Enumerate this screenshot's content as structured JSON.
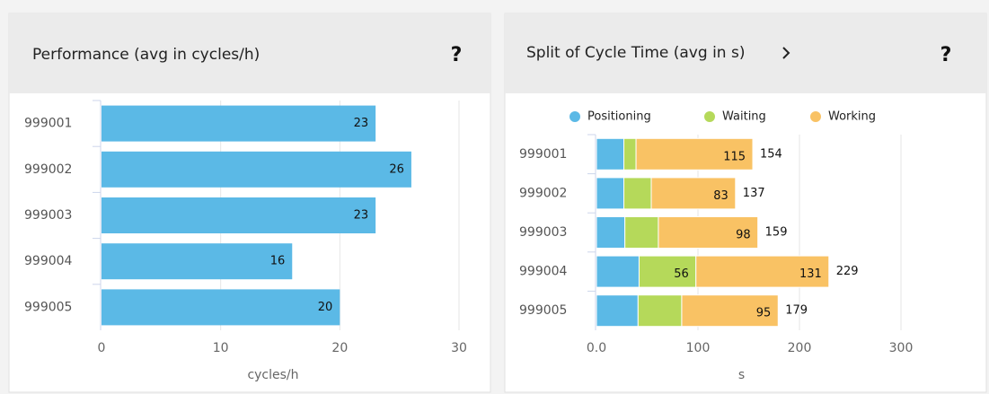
{
  "chart_data": [
    {
      "type": "bar",
      "title": "Performance (avg in cycles/h)",
      "help": "?",
      "categories": [
        "999001",
        "999002",
        "999003",
        "999004",
        "999005"
      ],
      "values": [
        23,
        26,
        23,
        16,
        20
      ],
      "color": "#5bb9e6",
      "xlim": [
        0,
        30
      ],
      "xticks": [
        0,
        10,
        20,
        30
      ],
      "xlabel": "cycles/h",
      "grid": true
    },
    {
      "type": "stacked_bar",
      "title": "Split of Cycle Time (avg in s)",
      "help": "?",
      "categories": [
        "999001",
        "999002",
        "999003",
        "999004",
        "999005"
      ],
      "series": [
        {
          "name": "Positioning",
          "color": "#5bb9e6",
          "values": [
            27,
            27,
            28,
            42,
            41
          ],
          "show_labels": false
        },
        {
          "name": "Waiting",
          "color": "#b5d95a",
          "values": [
            12,
            27,
            33,
            56,
            43
          ],
          "show_labels": true
        },
        {
          "name": "Working",
          "color": "#f9c264",
          "values": [
            115,
            83,
            98,
            131,
            95
          ],
          "show_labels": true
        }
      ],
      "totals": [
        154,
        137,
        159,
        229,
        179
      ],
      "xlim": [
        0,
        300
      ],
      "xticks": [
        {
          "value": 0,
          "label": "0.0"
        },
        100,
        200,
        300
      ],
      "xlabel": "s",
      "grid": true
    }
  ]
}
